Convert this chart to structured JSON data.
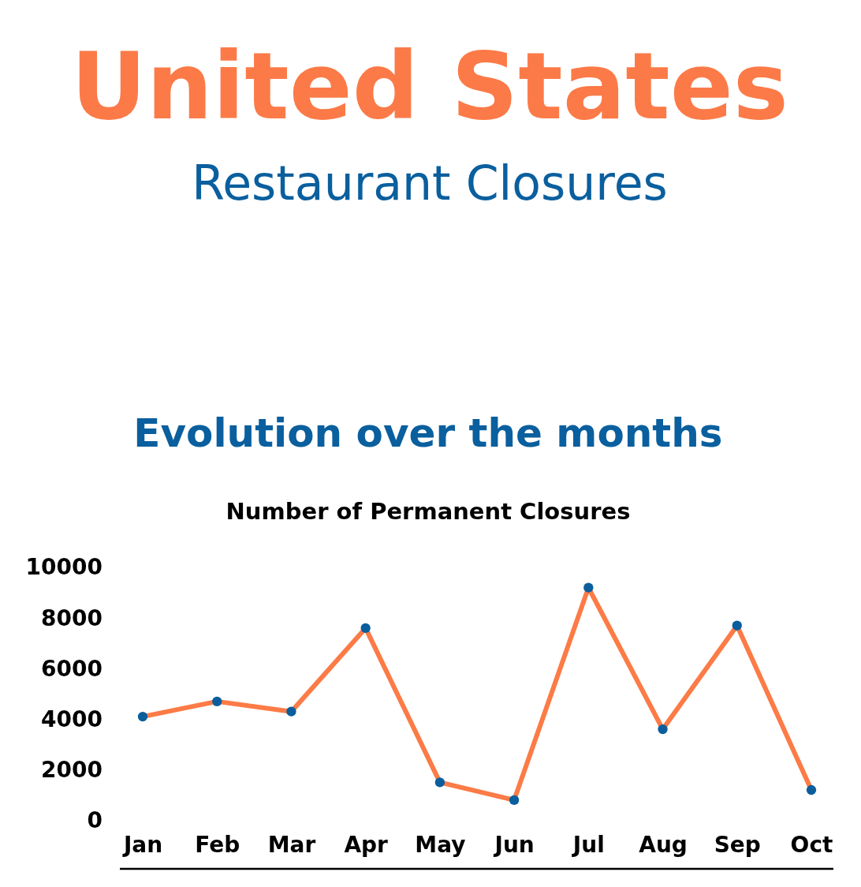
{
  "chart_data": {
    "type": "line",
    "title": "United States",
    "subtitle": "Restaurant Closures",
    "annotations": [
      "Evolution over the months"
    ],
    "ylabel": "Number of Permanent Closures",
    "categories": [
      "Jan",
      "Feb",
      "Mar",
      "Apr",
      "May",
      "Jun",
      "Jul",
      "Aug",
      "Sep",
      "Oct"
    ],
    "series": [
      {
        "color": "#fc7b46",
        "values": [
          4100,
          4700,
          4300,
          7600,
          1500,
          800,
          9200,
          3600,
          7700,
          1200
        ]
      }
    ],
    "ylim": [
      0,
      10000
    ],
    "yticks": [
      0,
      2000,
      4000,
      6000,
      8000,
      10000
    ],
    "marker": "circle",
    "line_style": "solid"
  }
}
